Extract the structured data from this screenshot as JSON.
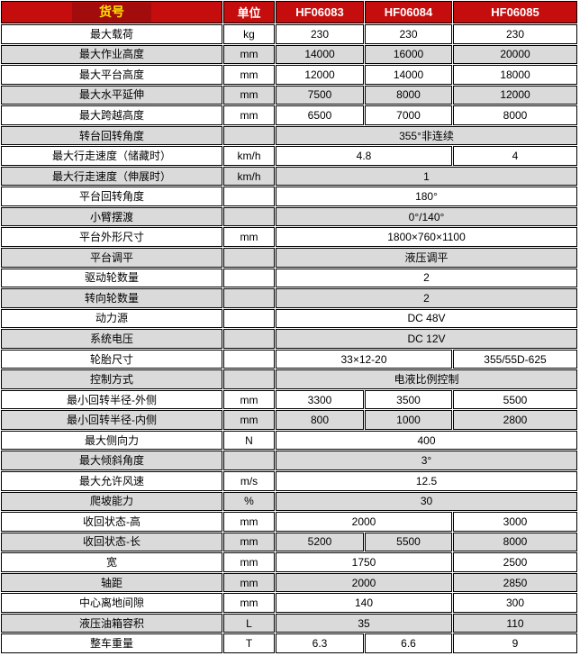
{
  "colors": {
    "header_red": "#c60d0d",
    "header_highlight_red": "#a30c0c",
    "header_item_text_yellow": "#ffe400",
    "header_text_white": "#ffffff",
    "row_alt_gray": "#dadada",
    "row_white": "#ffffff",
    "grid_black": "#000000"
  },
  "table": {
    "header": {
      "item_label": "货号",
      "unit_label": "单位",
      "models": [
        "HF06083",
        "HF06084",
        "HF06085"
      ]
    },
    "rows": [
      {
        "label": "最大载荷",
        "unit": "kg",
        "values": [
          {
            "text": "230",
            "span": 1
          },
          {
            "text": "230",
            "span": 1
          },
          {
            "text": "230",
            "span": 1
          }
        ]
      },
      {
        "label": "最大作业高度",
        "unit": "mm",
        "values": [
          {
            "text": "14000",
            "span": 1
          },
          {
            "text": "16000",
            "span": 1
          },
          {
            "text": "20000",
            "span": 1
          }
        ]
      },
      {
        "label": "最大平台高度",
        "unit": "mm",
        "values": [
          {
            "text": "12000",
            "span": 1
          },
          {
            "text": "14000",
            "span": 1
          },
          {
            "text": "18000",
            "span": 1
          }
        ]
      },
      {
        "label": "最大水平延伸",
        "unit": "mm",
        "values": [
          {
            "text": "7500",
            "span": 1
          },
          {
            "text": "8000",
            "span": 1
          },
          {
            "text": "12000",
            "span": 1
          }
        ]
      },
      {
        "label": "最大跨越高度",
        "unit": "mm",
        "values": [
          {
            "text": "6500",
            "span": 1
          },
          {
            "text": "7000",
            "span": 1
          },
          {
            "text": "8000",
            "span": 1
          }
        ]
      },
      {
        "label": "转台回转角度",
        "unit": "",
        "values": [
          {
            "text": "355°非连续",
            "span": 3
          }
        ]
      },
      {
        "label": "最大行走速度（储藏时）",
        "unit": "km/h",
        "values": [
          {
            "text": "4.8",
            "span": 2
          },
          {
            "text": "4",
            "span": 1
          }
        ]
      },
      {
        "label": "最大行走速度（伸展时）",
        "unit": "km/h",
        "values": [
          {
            "text": "1",
            "span": 3
          }
        ]
      },
      {
        "label": "平台回转角度",
        "unit": "",
        "values": [
          {
            "text": "180°",
            "span": 3
          }
        ]
      },
      {
        "label": "小臂摆渡",
        "unit": "",
        "values": [
          {
            "text": "0°/140°",
            "span": 3
          }
        ]
      },
      {
        "label": "平台外形尺寸",
        "unit": "mm",
        "values": [
          {
            "text": "1800×760×1100",
            "span": 3
          }
        ]
      },
      {
        "label": "平台调平",
        "unit": "",
        "values": [
          {
            "text": "液压调平",
            "span": 3
          }
        ]
      },
      {
        "label": "驱动轮数量",
        "unit": "",
        "values": [
          {
            "text": "2",
            "span": 3
          }
        ]
      },
      {
        "label": "转向轮数量",
        "unit": "",
        "values": [
          {
            "text": "2",
            "span": 3
          }
        ]
      },
      {
        "label": "动力源",
        "unit": "",
        "values": [
          {
            "text": "DC 48V",
            "span": 3
          }
        ]
      },
      {
        "label": "系统电压",
        "unit": "",
        "values": [
          {
            "text": "DC 12V",
            "span": 3
          }
        ]
      },
      {
        "label": "轮胎尺寸",
        "unit": "",
        "values": [
          {
            "text": "33×12-20",
            "span": 2
          },
          {
            "text": "355/55D-625",
            "span": 1
          }
        ]
      },
      {
        "label": "控制方式",
        "unit": "",
        "values": [
          {
            "text": "电液比例控制",
            "span": 3
          }
        ]
      },
      {
        "label": "最小回转半径-外侧",
        "unit": "mm",
        "values": [
          {
            "text": "3300",
            "span": 1
          },
          {
            "text": "3500",
            "span": 1
          },
          {
            "text": "5500",
            "span": 1
          }
        ]
      },
      {
        "label": "最小回转半径-内侧",
        "unit": "mm",
        "values": [
          {
            "text": "800",
            "span": 1
          },
          {
            "text": "1000",
            "span": 1
          },
          {
            "text": "2800",
            "span": 1
          }
        ]
      },
      {
        "label": "最大侧向力",
        "unit": "N",
        "values": [
          {
            "text": "400",
            "span": 3
          }
        ]
      },
      {
        "label": "最大倾斜角度",
        "unit": "",
        "values": [
          {
            "text": "3°",
            "span": 3
          }
        ]
      },
      {
        "label": "最大允许风速",
        "unit": "m/s",
        "values": [
          {
            "text": "12.5",
            "span": 3
          }
        ]
      },
      {
        "label": "爬坡能力",
        "unit": "%",
        "values": [
          {
            "text": "30",
            "span": 3
          }
        ]
      },
      {
        "label": "收回状态-高",
        "unit": "mm",
        "values": [
          {
            "text": "2000",
            "span": 2
          },
          {
            "text": "3000",
            "span": 1
          }
        ]
      },
      {
        "label": "收回状态-长",
        "unit": "mm",
        "values": [
          {
            "text": "5200",
            "span": 1
          },
          {
            "text": "5500",
            "span": 1
          },
          {
            "text": "8000",
            "span": 1
          }
        ]
      },
      {
        "label": "宽",
        "unit": "mm",
        "values": [
          {
            "text": "1750",
            "span": 2
          },
          {
            "text": "2500",
            "span": 1
          }
        ]
      },
      {
        "label": "轴距",
        "unit": "mm",
        "values": [
          {
            "text": "2000",
            "span": 2
          },
          {
            "text": "2850",
            "span": 1
          }
        ]
      },
      {
        "label": "中心离地间隙",
        "unit": "mm",
        "values": [
          {
            "text": "140",
            "span": 2
          },
          {
            "text": "300",
            "span": 1
          }
        ]
      },
      {
        "label": "液压油箱容积",
        "unit": "L",
        "values": [
          {
            "text": "35",
            "span": 2
          },
          {
            "text": "110",
            "span": 1
          }
        ]
      },
      {
        "label": "整车重量",
        "unit": "T",
        "values": [
          {
            "text": "6.3",
            "span": 1
          },
          {
            "text": "6.6",
            "span": 1
          },
          {
            "text": "9",
            "span": 1
          }
        ]
      }
    ]
  }
}
